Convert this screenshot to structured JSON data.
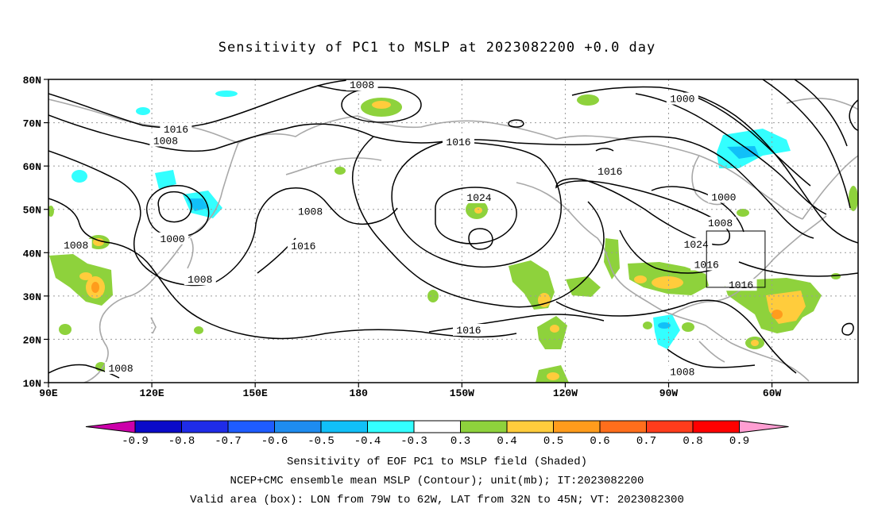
{
  "title": "Sensitivity of PC1 to MSLP at 2023082200 +0.0 day",
  "map": {
    "lat_labels": [
      "80N",
      "70N",
      "60N",
      "50N",
      "40N",
      "30N",
      "20N",
      "10N"
    ],
    "lon_labels": [
      "90E",
      "120E",
      "150E",
      "180",
      "150W",
      "120W",
      "90W",
      "60W"
    ],
    "contour_labels": [
      {
        "text": "1008",
        "lon": 181,
        "lat": 78.7
      },
      {
        "text": "1016",
        "lon": 127,
        "lat": 68.5
      },
      {
        "text": "1008",
        "lon": 124,
        "lat": 65.8
      },
      {
        "text": "1016",
        "lon": 209,
        "lat": 65.5
      },
      {
        "text": "1000",
        "lon": 274,
        "lat": 75.5
      },
      {
        "text": "1016",
        "lon": 253,
        "lat": 58.7
      },
      {
        "text": "1024",
        "lon": 215,
        "lat": 52.7
      },
      {
        "text": "1008",
        "lon": 166,
        "lat": 49.5
      },
      {
        "text": "1000",
        "lon": 286,
        "lat": 52.8
      },
      {
        "text": "1008",
        "lon": 285,
        "lat": 46.8
      },
      {
        "text": "1008",
        "lon": 98,
        "lat": 41.7
      },
      {
        "text": "1000",
        "lon": 126,
        "lat": 43.2
      },
      {
        "text": "1016",
        "lon": 164,
        "lat": 41.5
      },
      {
        "text": "1008",
        "lon": 134,
        "lat": 33.8
      },
      {
        "text": "1024",
        "lon": 278,
        "lat": 41.9
      },
      {
        "text": "1016",
        "lon": 281,
        "lat": 37.2
      },
      {
        "text": "1016",
        "lon": 291,
        "lat": 32.5
      },
      {
        "text": "1016",
        "lon": 212,
        "lat": 22.1
      },
      {
        "text": "1008",
        "lon": 111,
        "lat": 13.3
      },
      {
        "text": "1008",
        "lon": 274,
        "lat": 12.5
      }
    ],
    "valid_box": {
      "lon_w": -79,
      "lon_e": -62,
      "lat_s": 32,
      "lat_n": 45
    }
  },
  "colorbar": {
    "labels": [
      "-0.9",
      "-0.8",
      "-0.7",
      "-0.6",
      "-0.5",
      "-0.4",
      "-0.3",
      "0.3",
      "0.4",
      "0.5",
      "0.6",
      "0.7",
      "0.8",
      "0.9"
    ],
    "colors": [
      "#cc00aa",
      "#0a0ac8",
      "#1f2ce8",
      "#1e5cff",
      "#1e8cf0",
      "#11c0f8",
      "#33ffff",
      "#ffffff",
      "#8ed23c",
      "#ffcc3c",
      "#ff9c1c",
      "#ff6e1c",
      "#ff3c1c",
      "#ff0000",
      "#ff9ed2"
    ]
  },
  "captions": {
    "line1": "Sensitivity of EOF PC1 to MSLP field (Shaded)",
    "line2": "NCEP+CMC ensemble mean MSLP (Contour); unit(mb); IT:2023082200",
    "line3": "Valid area (box): LON from 79W to 62W, LAT from 32N to 45N; VT: 2023082300"
  }
}
